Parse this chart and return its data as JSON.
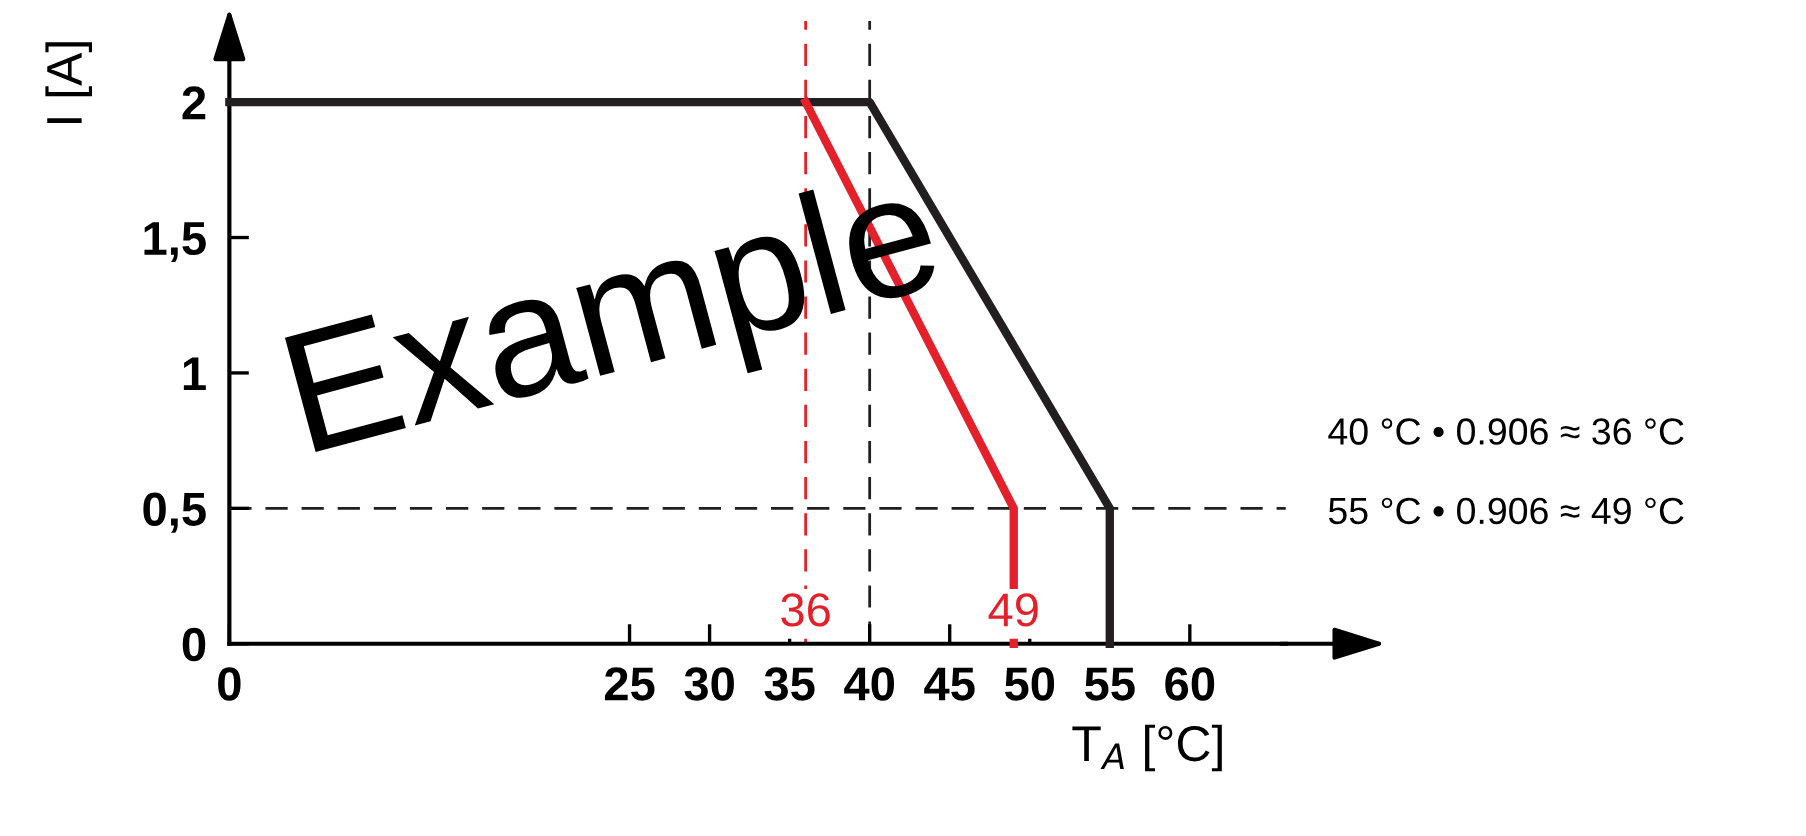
{
  "chart_data": {
    "type": "line",
    "xlabel": "T$_{A}$ [°C]",
    "ylabel": "I [A]",
    "xlim": [
      0,
      66
    ],
    "ylim": [
      0,
      2.3
    ],
    "xticks": [
      0,
      25,
      30,
      35,
      40,
      45,
      50,
      55,
      60
    ],
    "yticks": [
      0,
      {
        "value": 0.5,
        "label": "0,5"
      },
      1,
      {
        "value": 1.5,
        "label": "1,5"
      },
      2
    ],
    "series": [
      {
        "color": "#231f20",
        "x": [
          0,
          40,
          55,
          55
        ],
        "values": [
          2,
          2,
          0.5,
          0
        ]
      },
      {
        "color": "#e4202a",
        "x": [
          36,
          49,
          49
        ],
        "values": [
          2,
          0.5,
          0
        ]
      }
    ],
    "ref_lines": [
      {
        "axis": "x",
        "value": 40,
        "color": "#231f20",
        "line_style": "dashed"
      },
      {
        "axis": "x",
        "value": 36,
        "color": "#e4202a",
        "line_style": "dashed"
      },
      {
        "axis": "y",
        "value": 0.5,
        "color": "#231f20",
        "line_style": "dashed"
      }
    ],
    "annotations": [
      {
        "text": "36",
        "x": 36,
        "y": 0.11
      },
      {
        "text": "49",
        "x": 49,
        "y": 0.11
      },
      "40 °C • 0.906 ≈ 36 °C",
      "55 °C • 0.906 ≈ 49 °C",
      "Example"
    ],
    "grid": false,
    "marker": "none",
    "line_style": "solid"
  }
}
